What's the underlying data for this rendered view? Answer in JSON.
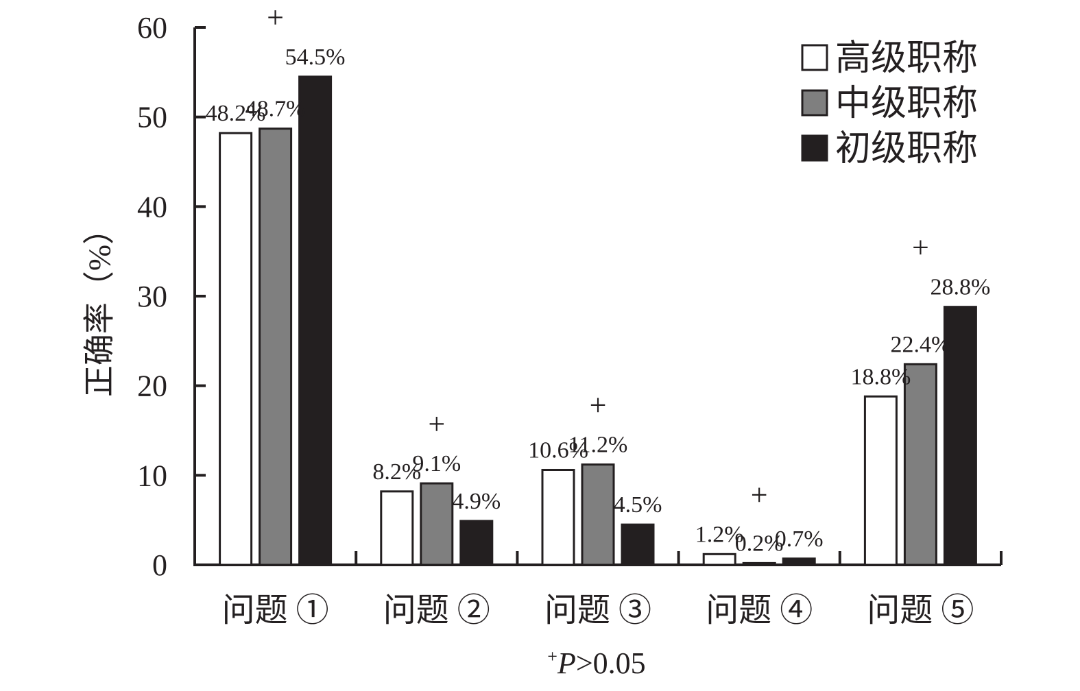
{
  "chart_data": {
    "type": "bar",
    "ylabel": "正确率（%）",
    "ylim": [
      0,
      60
    ],
    "yticks": [
      "0",
      "10",
      "20",
      "30",
      "40",
      "50",
      "60"
    ],
    "categories": [
      "问题 ①",
      "问题 ②",
      "问题 ③",
      "问题 ④",
      "问题 ⑤"
    ],
    "series": [
      {
        "name": "高级职称",
        "fill": "#ffffff",
        "values": [
          48.2,
          8.2,
          10.6,
          1.2,
          18.8
        ],
        "labels": [
          "48.2%",
          "8.2%",
          "10.6%",
          "1.2%",
          "18.8%"
        ]
      },
      {
        "name": "中级职称",
        "fill": "#7f7f7f",
        "values": [
          48.7,
          9.1,
          11.2,
          0.2,
          22.4
        ],
        "labels": [
          "48.7%",
          "9.1%",
          "11.2%",
          "0.2%",
          "22.4%"
        ]
      },
      {
        "name": "初级职称",
        "fill": "#231f20",
        "values": [
          54.5,
          4.9,
          4.5,
          0.7,
          28.8
        ],
        "labels": [
          "54.5%",
          "4.9%",
          "4.5%",
          "0.7%",
          "28.8%"
        ]
      }
    ],
    "significance_markers": [
      "+",
      "+",
      "+",
      "+",
      "+"
    ],
    "legend_position": "top-right",
    "grid": false,
    "footnote": {
      "mark": "+",
      "italic": "P",
      "rest": ">0.05"
    }
  }
}
